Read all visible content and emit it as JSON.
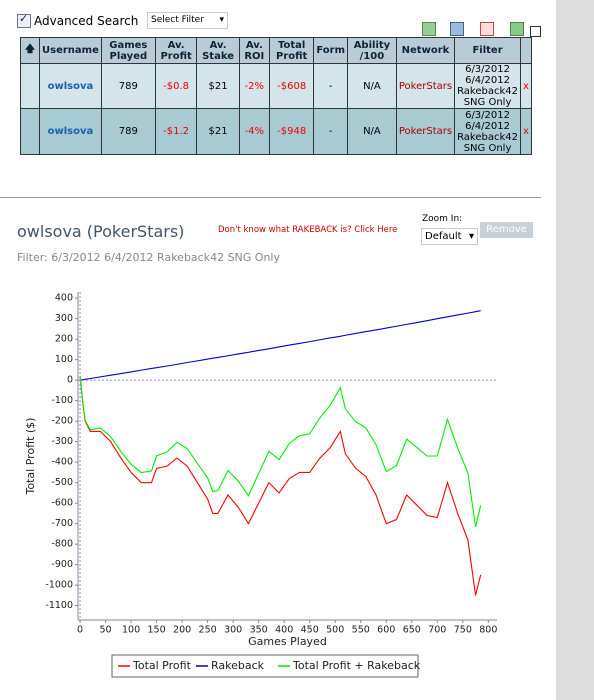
{
  "header": {
    "advanced_search": "Advanced Search",
    "select_filter": "Select Filter"
  },
  "table": {
    "headers": [
      "Username",
      "Games Played",
      "Av. Profit",
      "Av. Stake",
      "Av. ROI",
      "Total Profit",
      "Form",
      "Ability /100",
      "Network",
      "Filter"
    ],
    "rows": [
      [
        "owlsova",
        "789",
        "-$0.8",
        "$21",
        "-2%",
        "-$608",
        "-",
        "N/A",
        "PokerStars",
        "6/3/2012 6/4/2012 Rakeback42 SNG Only",
        "x"
      ],
      [
        "owlsova",
        "789",
        "-$1.2",
        "$21",
        "-4%",
        "-$948",
        "-",
        "N/A",
        "PokerStars",
        "6/3/2012 6/4/2012 Rakeback42 SNG Only",
        "x"
      ]
    ]
  },
  "section": {
    "title": "owlsova (PokerStars)",
    "rakeback_link": "Don't know what RAKEBACK is? Click Here",
    "zoom_label": "Zoom In:",
    "zoom_select": "Default",
    "remove_button": "Remove",
    "filter": "Filter: 6/3/2012 6/4/2012 Rakeback42 SNG Only"
  },
  "chart_data": {
    "type": "line",
    "x_label": "Games Played",
    "y_label": "Total Profit ($)",
    "xlim": [
      -4,
      817
    ],
    "ylim": [
      -1170,
      430
    ],
    "xticks": [
      0,
      50,
      100,
      150,
      200,
      250,
      300,
      350,
      400,
      450,
      500,
      550,
      600,
      650,
      700,
      750,
      800
    ],
    "yticks": [
      -1100,
      -1000,
      -900,
      -800,
      -700,
      -600,
      -500,
      -400,
      -300,
      -200,
      -100,
      0,
      100,
      200,
      300,
      400
    ],
    "x": [
      0,
      5,
      10,
      20,
      40,
      60,
      80,
      100,
      120,
      140,
      150,
      170,
      190,
      210,
      230,
      250,
      260,
      270,
      290,
      310,
      330,
      350,
      370,
      390,
      410,
      430,
      450,
      470,
      490,
      510,
      520,
      540,
      560,
      580,
      600,
      620,
      640,
      660,
      680,
      700,
      720,
      740,
      760,
      775,
      785
    ],
    "series": [
      {
        "name": "Total Profit",
        "color": "#ff0000",
        "values": [
          20,
          -100,
          -200,
          -250,
          -250,
          -300,
          -380,
          -450,
          -500,
          -500,
          -430,
          -420,
          -380,
          -420,
          -500,
          -580,
          -650,
          -650,
          -560,
          -620,
          -700,
          -600,
          -500,
          -550,
          -480,
          -450,
          -450,
          -380,
          -330,
          -250,
          -360,
          -430,
          -470,
          -560,
          -700,
          -680,
          -560,
          -610,
          -660,
          -670,
          -500,
          -650,
          -780,
          -1050,
          -950
        ]
      },
      {
        "name": "Rakeback",
        "color": "#0000cc",
        "values": [
          0,
          2,
          4,
          8,
          16,
          24,
          32,
          40,
          49,
          57,
          61,
          69,
          77,
          86,
          94,
          103,
          107,
          111,
          119,
          128,
          136,
          145,
          153,
          162,
          171,
          179,
          188,
          197,
          206,
          214,
          219,
          228,
          237,
          245,
          254,
          263,
          272,
          281,
          290,
          300,
          309,
          318,
          327,
          334,
          339
        ]
      },
      {
        "name": "Total Profit + Rakeback",
        "color": "#00ee00",
        "values": [
          20,
          -98,
          -196,
          -242,
          -234,
          -276,
          -348,
          -410,
          -451,
          -443,
          -369,
          -351,
          -303,
          -334,
          -406,
          -477,
          -543,
          -539,
          -441,
          -492,
          -564,
          -455,
          -347,
          -388,
          -309,
          -271,
          -262,
          -183,
          -124,
          -36,
          -141,
          -202,
          -233,
          -315,
          -446,
          -417,
          -288,
          -329,
          -370,
          -370,
          -191,
          -332,
          -453,
          -716,
          -611
        ]
      }
    ]
  }
}
